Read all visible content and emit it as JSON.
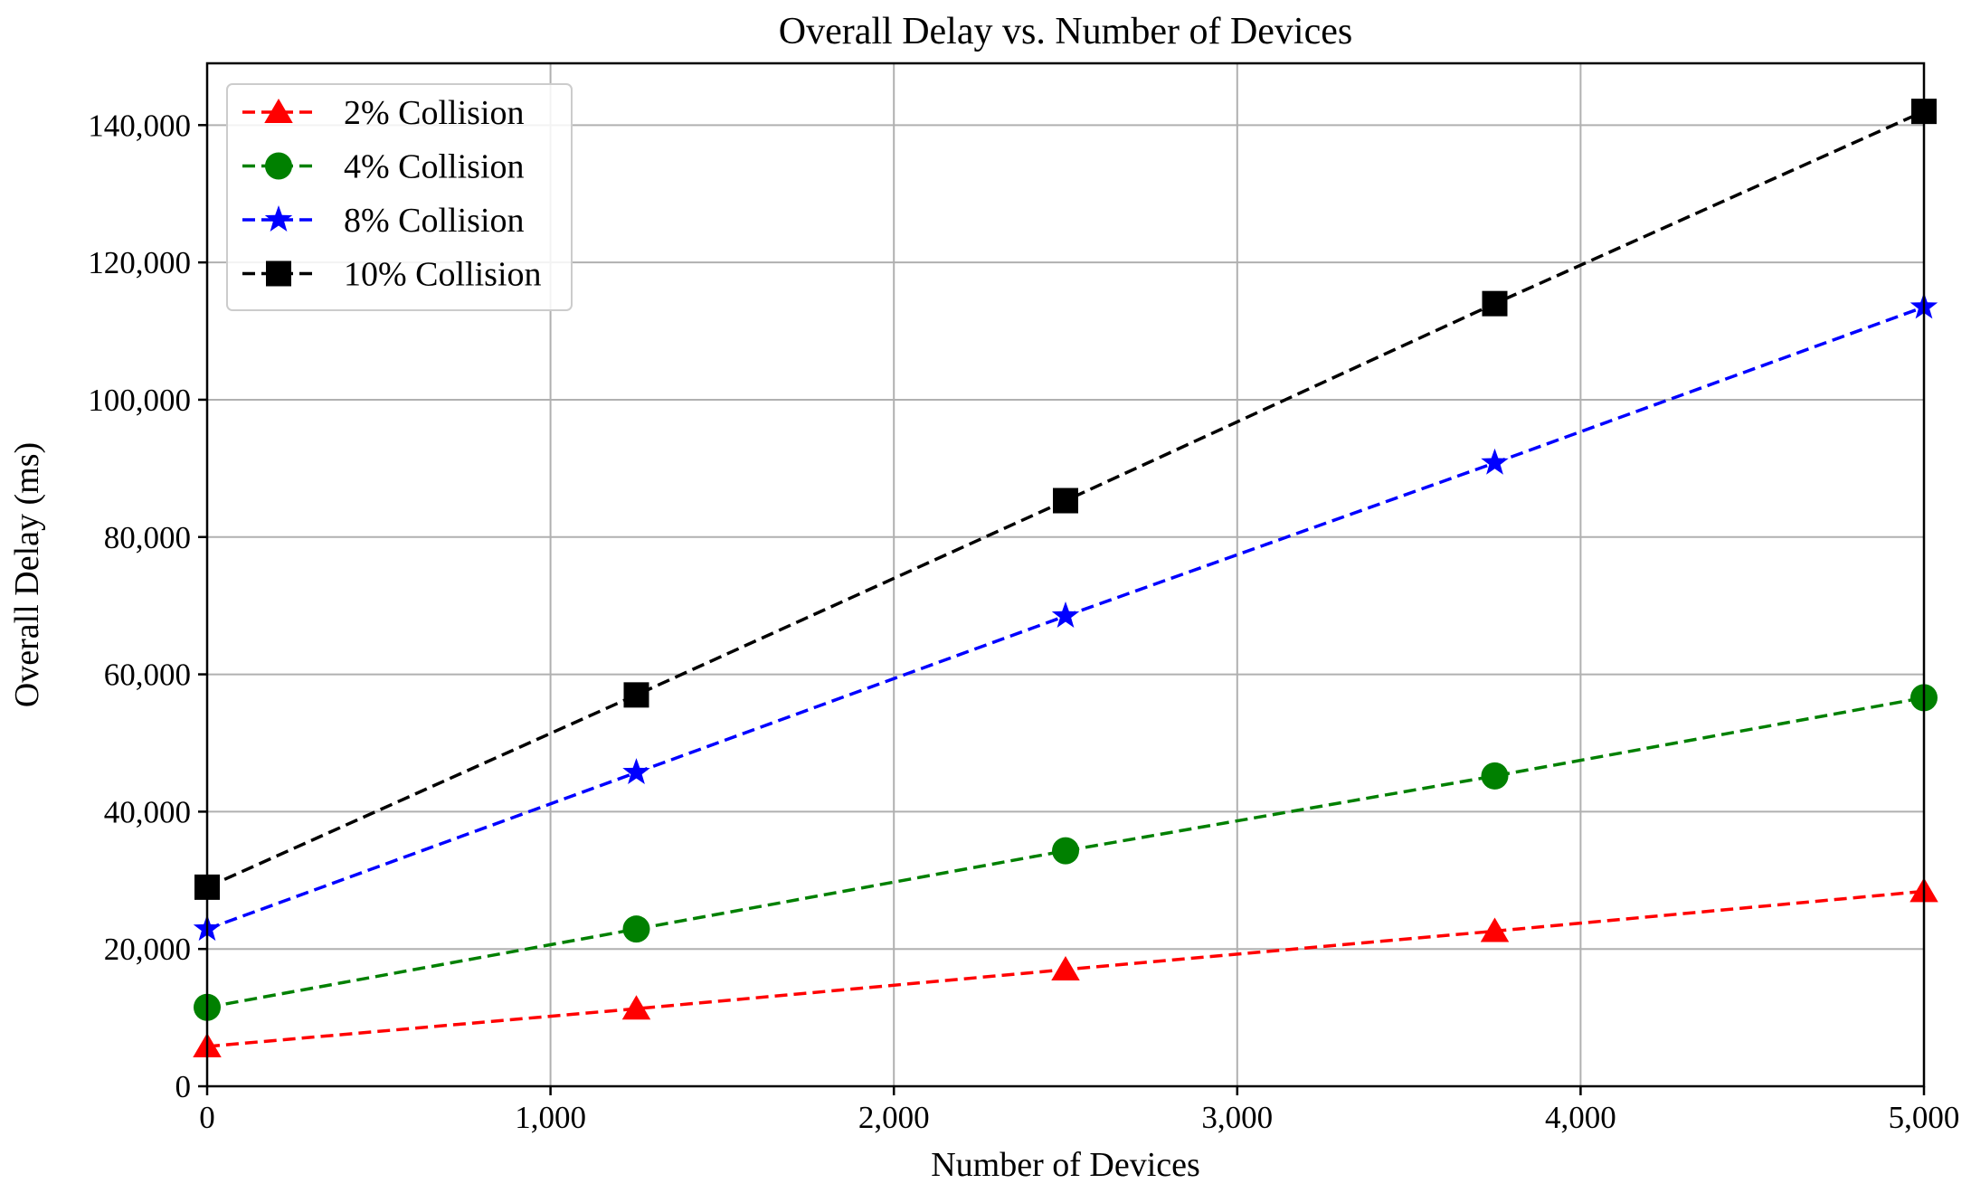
{
  "chart_data": {
    "type": "line",
    "title": "Overall Delay vs. Number of Devices",
    "xlabel": "Number of Devices",
    "ylabel": "Overall Delay (ms)",
    "xlim": [
      0,
      5000
    ],
    "ylim": [
      0,
      149000
    ],
    "xticks": [
      0,
      1000,
      2000,
      3000,
      4000,
      5000
    ],
    "xtick_labels": [
      "0",
      "1,000",
      "2,000",
      "3,000",
      "4,000",
      "5,000"
    ],
    "yticks": [
      0,
      20000,
      40000,
      60000,
      80000,
      100000,
      120000,
      140000
    ],
    "ytick_labels": [
      "0",
      "20,000",
      "40,000",
      "60,000",
      "80,000",
      "100,000",
      "120,000",
      "140,000"
    ],
    "grid": true,
    "legend_position": "top-left",
    "x": [
      0,
      1250,
      2500,
      3750,
      5000
    ],
    "series": [
      {
        "name": "2% Collision",
        "color": "#ff0000",
        "marker": "triangle",
        "values": [
          5800,
          11300,
          17000,
          22600,
          28400
        ]
      },
      {
        "name": "4% Collision",
        "color": "#008000",
        "marker": "circle",
        "values": [
          11500,
          22900,
          34300,
          45200,
          56600
        ]
      },
      {
        "name": "8% Collision",
        "color": "#0000ff",
        "marker": "star",
        "values": [
          22900,
          45700,
          68500,
          90800,
          113500
        ]
      },
      {
        "name": "10% Collision",
        "color": "#000000",
        "marker": "square",
        "values": [
          29000,
          57000,
          85300,
          114000,
          142000
        ]
      }
    ]
  }
}
